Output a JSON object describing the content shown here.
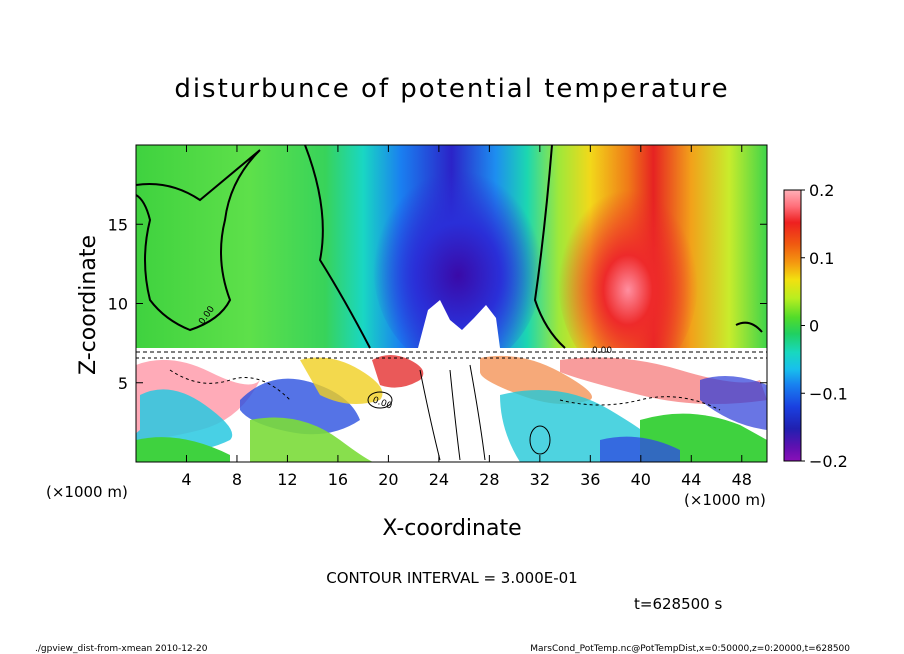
{
  "chart_data": {
    "type": "heatmap",
    "title": "disturbunce of potential temperature",
    "xlabel": "X-coordinate",
    "ylabel": "Z-coordinate",
    "x_unit": "(×1000 m)",
    "y_unit": "(×1000 m)",
    "xlim": [
      0,
      50
    ],
    "ylim": [
      0,
      20
    ],
    "x_ticks": [
      "4",
      "8",
      "12",
      "16",
      "20",
      "24",
      "28",
      "32",
      "36",
      "40",
      "44",
      "48"
    ],
    "y_ticks": [
      "5",
      "10",
      "15"
    ],
    "colorbar": {
      "ticks": [
        "0.2",
        "0.1",
        "0",
        "−0.1",
        "−0.2"
      ],
      "range": [
        -0.2,
        0.2
      ]
    },
    "contour_labels": [
      "0.00",
      "0.00",
      "0.00"
    ],
    "contour_interval": "CONTOUR INTERVAL = 3.000E-01",
    "time_label": "t=628500 s",
    "footer_left": "./gpview_dist-from-xmean  2010-12-20",
    "footer_right": "MarsCond_PotTemp.nc@PotTempDist,x=0:50000,z=0:20000,t=628500"
  }
}
